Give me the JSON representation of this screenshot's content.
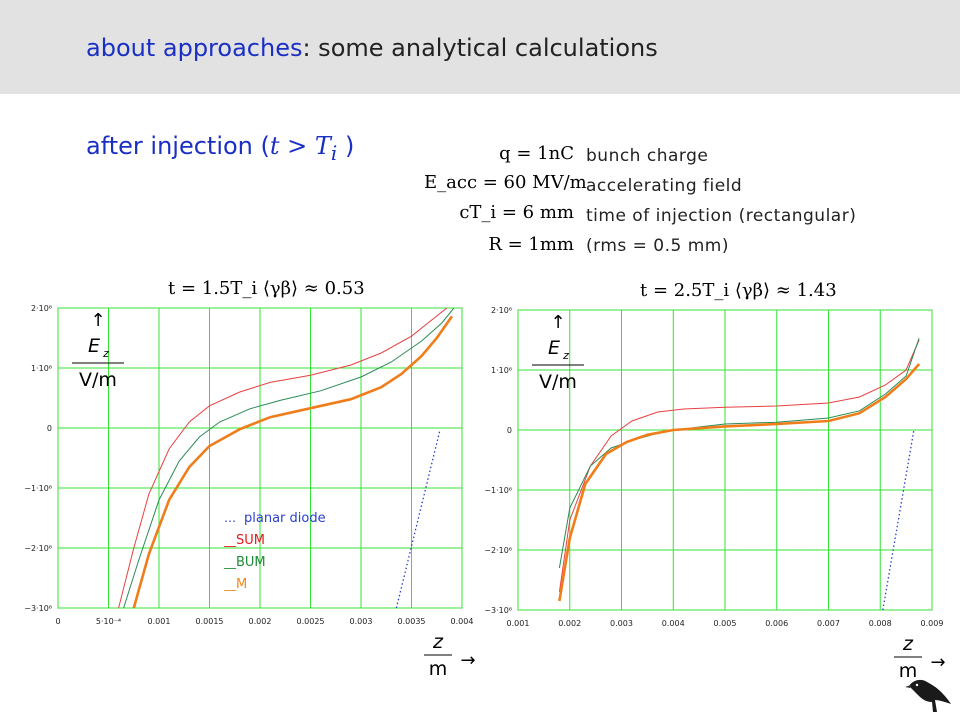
{
  "header": {
    "title_accent": "about approaches",
    "title_rest": ": some analytical calculations"
  },
  "subtitle": {
    "prefix": "after injection (",
    "math": "t > T",
    "sub": "i",
    "suffix": " )"
  },
  "params": [
    {
      "formula": "q = 1nC",
      "label": "bunch charge"
    },
    {
      "formula": "E_acc = 60 MV/m",
      "label": "accelerating field"
    },
    {
      "formula": "cT_i = 6 mm",
      "label": "time of injection (rectangular)"
    },
    {
      "formula": "R = 1mm",
      "label": "(rms = 0.5 mm)"
    }
  ],
  "legend": [
    {
      "dash": "…",
      "label": "planar diode",
      "color": "#2a3fd0"
    },
    {
      "dash": "__",
      "label": "SUM",
      "color": "#e11b1b"
    },
    {
      "dash": "__",
      "label": "BUM",
      "color": "#1f8a3a"
    },
    {
      "dash": "__",
      "label": "M",
      "color": "#f08a1c"
    }
  ],
  "colors": {
    "grid": "#35e335",
    "planar": "#2a3fd0",
    "sum": "#e84040",
    "bum": "#2a8a55",
    "m": "#f07d1a"
  },
  "chart_data": [
    {
      "type": "line",
      "formula": "t = 1.5T_i   ⟨γβ⟩ ≈ 0.53",
      "ylabel": "E_z / V/m",
      "xlabel": "z / m",
      "xlim": [
        0,
        0.004
      ],
      "ylim": [
        -3000000,
        2000000
      ],
      "x_ticks": [
        0,
        0.0005,
        0.001,
        0.0015,
        0.002,
        0.0025,
        0.003,
        0.0035,
        0.004
      ],
      "x_tick_labels": [
        "0",
        "5·10⁻⁴",
        "0.001",
        "0.0015",
        "0.002",
        "0.0025",
        "0.003",
        "0.0035",
        "0.004"
      ],
      "y_ticks": [
        2000000,
        1000000,
        0,
        -1000000,
        -2000000,
        -3000000
      ],
      "y_tick_labels": [
        "2·10⁶",
        "1·10⁶",
        "0",
        "−1·10⁶",
        "−2·10⁶",
        "−3·10⁶"
      ],
      "series": [
        {
          "name": "planar diode",
          "style": "dotted",
          "x": [
            0.00335,
            0.00378
          ],
          "y": [
            -3000000,
            -45000
          ]
        },
        {
          "name": "SUM",
          "x": [
            0.0006,
            0.00075,
            0.0009,
            0.0011,
            0.0013,
            0.0015,
            0.0018,
            0.0021,
            0.0025,
            0.0029,
            0.0032,
            0.0035,
            0.0037,
            0.00385
          ],
          "y": [
            -3000000,
            -2000000,
            -1100000,
            -350000,
            100000,
            370000,
            600000,
            760000,
            880000,
            1050000,
            1250000,
            1530000,
            1800000,
            2000000
          ]
        },
        {
          "name": "BUM",
          "x": [
            0.00065,
            0.0008,
            0.001,
            0.0012,
            0.0014,
            0.0016,
            0.0019,
            0.0022,
            0.0026,
            0.003,
            0.0033,
            0.0036,
            0.0038,
            0.00392
          ],
          "y": [
            -3000000,
            -2200000,
            -1200000,
            -550000,
            -150000,
            100000,
            320000,
            460000,
            620000,
            850000,
            1100000,
            1450000,
            1750000,
            2000000
          ]
        },
        {
          "name": "M",
          "x": [
            0.00075,
            0.0009,
            0.0011,
            0.0013,
            0.0015,
            0.0018,
            0.0021,
            0.0025,
            0.0029,
            0.0032,
            0.0034,
            0.0036,
            0.00375,
            0.0039
          ],
          "y": [
            -3000000,
            -2100000,
            -1200000,
            -650000,
            -300000,
            -20000,
            180000,
            330000,
            480000,
            680000,
            900000,
            1200000,
            1500000,
            1860000
          ]
        }
      ]
    },
    {
      "type": "line",
      "formula": "t = 2.5T_i   ⟨γβ⟩ ≈ 1.43",
      "ylabel": "E_z / V/m",
      "xlabel": "z / m",
      "xlim": [
        0.001,
        0.009
      ],
      "ylim": [
        -3000000,
        2000000
      ],
      "x_ticks": [
        0.001,
        0.002,
        0.003,
        0.004,
        0.005,
        0.006,
        0.007,
        0.008,
        0.009
      ],
      "x_tick_labels": [
        "0.001",
        "0.002",
        "0.003",
        "0.004",
        "0.005",
        "0.006",
        "0.007",
        "0.008",
        "0.009"
      ],
      "y_ticks": [
        2000000,
        1000000,
        0,
        -1000000,
        -2000000,
        -3000000
      ],
      "y_tick_labels": [
        "2·10⁶",
        "1·10⁶",
        "0",
        "−1·10⁶",
        "−2·10⁶",
        "−3·10⁶"
      ],
      "series": [
        {
          "name": "planar diode",
          "style": "dotted",
          "x": [
            0.00805,
            0.00865
          ],
          "y": [
            -3000000,
            0
          ]
        },
        {
          "name": "SUM",
          "x": [
            0.0018,
            0.002,
            0.0024,
            0.0028,
            0.0032,
            0.0037,
            0.0042,
            0.005,
            0.006,
            0.007,
            0.0076,
            0.0081,
            0.0085,
            0.00875
          ],
          "y": [
            -2700000,
            -1500000,
            -600000,
            -100000,
            150000,
            300000,
            350000,
            380000,
            400000,
            450000,
            550000,
            750000,
            1000000,
            1500000
          ]
        },
        {
          "name": "BUM",
          "x": [
            0.0018,
            0.002,
            0.0024,
            0.0028,
            0.0033,
            0.0038,
            0.0045,
            0.005,
            0.006,
            0.007,
            0.0076,
            0.0081,
            0.0085,
            0.00875
          ],
          "y": [
            -2300000,
            -1300000,
            -600000,
            -300000,
            -150000,
            -30000,
            50000,
            100000,
            130000,
            200000,
            320000,
            600000,
            900000,
            1530000
          ]
        },
        {
          "name": "M",
          "x": [
            0.0018,
            0.002,
            0.0023,
            0.0027,
            0.0031,
            0.0035,
            0.004,
            0.005,
            0.006,
            0.007,
            0.0076,
            0.0081,
            0.0085,
            0.00875
          ],
          "y": [
            -2850000,
            -1800000,
            -900000,
            -400000,
            -200000,
            -80000,
            0,
            60000,
            100000,
            150000,
            280000,
            550000,
            850000,
            1100000
          ]
        }
      ]
    }
  ]
}
